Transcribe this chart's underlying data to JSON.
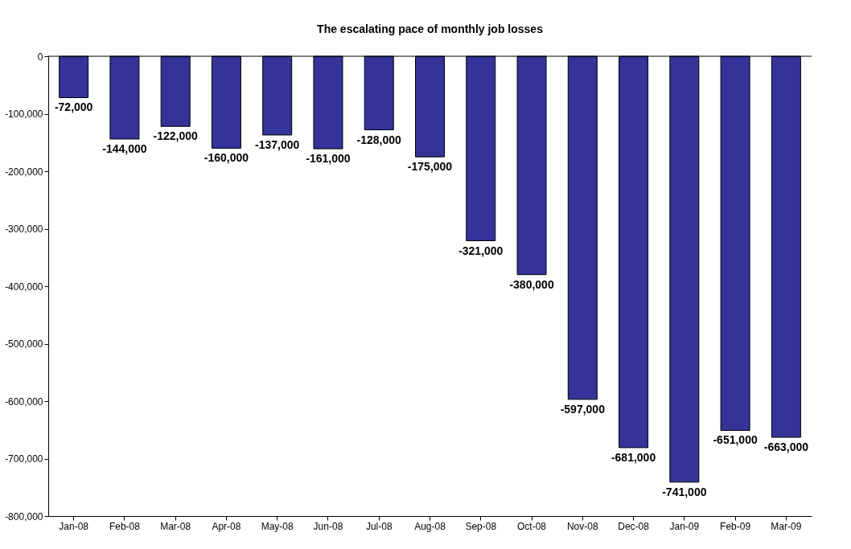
{
  "chart_data": {
    "type": "bar",
    "title": "The escalating pace of monthly job losses",
    "categories": [
      "Jan-08",
      "Feb-08",
      "Mar-08",
      "Apr-08",
      "May-08",
      "Jun-08",
      "Jul-08",
      "Aug-08",
      "Sep-08",
      "Oct-08",
      "Nov-08",
      "Dec-08",
      "Jan-09",
      "Feb-09",
      "Mar-09"
    ],
    "values": [
      -72000,
      -144000,
      -122000,
      -160000,
      -137000,
      -161000,
      -128000,
      -175000,
      -321000,
      -380000,
      -597000,
      -681000,
      -741000,
      -651000,
      -663000
    ],
    "value_labels": [
      "-72,000",
      "-144,000",
      "-122,000",
      "-160,000",
      "-137,000",
      "-161,000",
      "-128,000",
      "-175,000",
      "-321,000",
      "-380,000",
      "-597,000",
      "-681,000",
      "-741,000",
      "-651,000",
      "-663,000"
    ],
    "color": "#333399",
    "ylim": [
      -800000,
      0
    ],
    "yticks": [
      0,
      {
        "value": -100000,
        "label": "-100,000"
      },
      {
        "value": -200000,
        "label": "-200,000"
      },
      {
        "value": -300000,
        "label": "-300,000"
      },
      {
        "value": -400000,
        "label": "-400,000"
      },
      {
        "value": -500000,
        "label": "-500,000"
      },
      {
        "value": -600000,
        "label": "-600,000"
      },
      {
        "value": -700000,
        "label": "-700,000"
      },
      {
        "value": -800000,
        "label": "-800,000"
      }
    ],
    "grid": false
  }
}
